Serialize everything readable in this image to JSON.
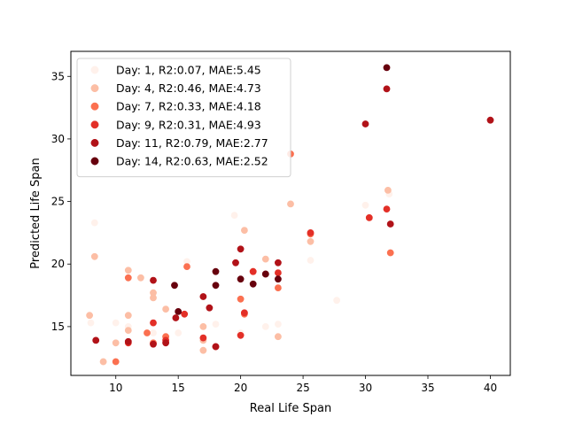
{
  "chart_data": {
    "type": "scatter",
    "xlabel": "Real Life Span",
    "ylabel": "Predicted Life Span",
    "xlim": [
      6.4,
      41.6
    ],
    "ylim": [
      11.1,
      37.0
    ],
    "xticks": [
      10,
      15,
      20,
      25,
      30,
      35,
      40
    ],
    "yticks": [
      15,
      20,
      25,
      30,
      35
    ],
    "grid": false,
    "legend_position": "top-left",
    "series": [
      {
        "name": "Day: 1, R2:0.07, MAE:5.45",
        "color": "#fff1eb",
        "points": [
          [
            8.3,
            23.3
          ],
          [
            8.0,
            15.3
          ],
          [
            9.0,
            12.2
          ],
          [
            10.0,
            15.3
          ],
          [
            11.0,
            15.0
          ],
          [
            13.0,
            14.5
          ],
          [
            15.0,
            14.5
          ],
          [
            15.7,
            20.2
          ],
          [
            18.0,
            15.2
          ],
          [
            19.5,
            23.9
          ],
          [
            20.0,
            14.5
          ],
          [
            22.0,
            15.0
          ],
          [
            23.0,
            15.2
          ],
          [
            25.6,
            20.3
          ],
          [
            27.7,
            17.1
          ],
          [
            30.0,
            24.7
          ],
          [
            31.9,
            25.6
          ]
        ]
      },
      {
        "name": "Day: 4, R2:0.46, MAE:4.73",
        "color": "#fcbea5",
        "points": [
          [
            7.9,
            15.9
          ],
          [
            8.3,
            20.6
          ],
          [
            9.0,
            12.2
          ],
          [
            10.0,
            13.7
          ],
          [
            11.0,
            19.5
          ],
          [
            11.0,
            15.9
          ],
          [
            11.0,
            14.7
          ],
          [
            12.0,
            18.9
          ],
          [
            13.0,
            17.7
          ],
          [
            13.0,
            17.3
          ],
          [
            14.0,
            16.4
          ],
          [
            17.0,
            15.0
          ],
          [
            17.0,
            13.9
          ],
          [
            17.0,
            13.1
          ],
          [
            20.3,
            22.7
          ],
          [
            22.0,
            20.4
          ],
          [
            23.0,
            14.2
          ],
          [
            24.0,
            24.8
          ],
          [
            25.6,
            21.8
          ],
          [
            30.3,
            23.7
          ],
          [
            31.8,
            25.9
          ]
        ]
      },
      {
        "name": "Day: 7, R2:0.33, MAE:4.18",
        "color": "#fb7050",
        "points": [
          [
            10.0,
            12.2
          ],
          [
            11.0,
            18.9
          ],
          [
            12.5,
            14.5
          ],
          [
            13.0,
            13.7
          ],
          [
            14.0,
            14.2
          ],
          [
            15.7,
            19.8
          ],
          [
            20.0,
            17.2
          ],
          [
            20.3,
            16.0
          ],
          [
            21.0,
            19.4
          ],
          [
            23.0,
            18.1
          ],
          [
            24.0,
            28.8
          ],
          [
            25.6,
            22.4
          ],
          [
            32.0,
            20.9
          ]
        ]
      },
      {
        "name": "Day: 9, R2:0.31, MAE:4.93",
        "color": "#e32f27",
        "points": [
          [
            11.0,
            13.7
          ],
          [
            13.0,
            15.3
          ],
          [
            14.0,
            13.9
          ],
          [
            15.5,
            16.0
          ],
          [
            17.0,
            14.1
          ],
          [
            18.0,
            13.4
          ],
          [
            20.0,
            14.3
          ],
          [
            20.3,
            16.1
          ],
          [
            21.0,
            19.4
          ],
          [
            23.0,
            19.3
          ],
          [
            25.6,
            22.5
          ],
          [
            30.3,
            23.7
          ],
          [
            31.7,
            24.4
          ]
        ]
      },
      {
        "name": "Day: 11, R2:0.79, MAE:2.77",
        "color": "#b11218",
        "points": [
          [
            8.4,
            13.9
          ],
          [
            11.0,
            13.8
          ],
          [
            13.0,
            18.7
          ],
          [
            13.0,
            13.6
          ],
          [
            14.0,
            13.7
          ],
          [
            14.8,
            15.7
          ],
          [
            17.0,
            17.4
          ],
          [
            17.5,
            16.5
          ],
          [
            18.0,
            13.4
          ],
          [
            19.6,
            20.1
          ],
          [
            20.0,
            21.2
          ],
          [
            22.0,
            19.2
          ],
          [
            23.0,
            20.1
          ],
          [
            30.0,
            31.2
          ],
          [
            31.7,
            34.0
          ],
          [
            32.0,
            23.2
          ],
          [
            40.0,
            31.5
          ]
        ]
      },
      {
        "name": "Day: 14, R2:0.63, MAE:2.52",
        "color": "#67000d",
        "points": [
          [
            14.7,
            18.3
          ],
          [
            15.0,
            16.2
          ],
          [
            18.0,
            19.4
          ],
          [
            18.0,
            18.3
          ],
          [
            20.0,
            18.8
          ],
          [
            21.0,
            18.4
          ],
          [
            22.0,
            19.2
          ],
          [
            23.0,
            18.8
          ],
          [
            31.7,
            35.7
          ]
        ]
      }
    ]
  }
}
